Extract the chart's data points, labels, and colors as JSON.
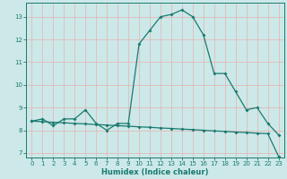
{
  "xlabel": "Humidex (Indice chaleur)",
  "background_color": "#cce8e8",
  "grid_color": "#e8b0b0",
  "line_color": "#1a7a6e",
  "spine_color": "#1a7a6e",
  "xlim": [
    -0.5,
    23.5
  ],
  "ylim": [
    6.8,
    13.6
  ],
  "x_ticks": [
    0,
    1,
    2,
    3,
    4,
    5,
    6,
    7,
    8,
    9,
    10,
    11,
    12,
    13,
    14,
    15,
    16,
    17,
    18,
    19,
    20,
    21,
    22,
    23
  ],
  "y_ticks": [
    7,
    8,
    9,
    10,
    11,
    12,
    13
  ],
  "curve1_x": [
    0,
    1,
    2,
    3,
    4,
    5,
    6,
    7,
    8,
    9,
    10,
    11,
    12,
    13,
    14,
    15,
    16,
    17,
    18,
    19,
    20,
    21,
    22,
    23
  ],
  "curve1_y": [
    8.4,
    8.5,
    8.2,
    8.5,
    8.5,
    8.9,
    8.3,
    8.0,
    8.3,
    8.3,
    11.8,
    12.4,
    13.0,
    13.1,
    13.3,
    13.0,
    12.2,
    10.5,
    10.5,
    9.7,
    8.9,
    9.0,
    8.3,
    7.8
  ],
  "curve2_x": [
    0,
    1,
    2,
    3,
    4,
    5,
    6,
    7,
    8,
    9,
    10,
    11,
    12,
    13,
    14,
    15,
    16,
    17,
    18,
    19,
    20,
    21,
    22,
    23
  ],
  "curve2_y": [
    8.4,
    8.38,
    8.35,
    8.33,
    8.3,
    8.28,
    8.25,
    8.23,
    8.2,
    8.18,
    8.15,
    8.13,
    8.1,
    8.08,
    8.05,
    8.03,
    8.0,
    7.97,
    7.95,
    7.92,
    7.9,
    7.87,
    7.85,
    6.85
  ]
}
